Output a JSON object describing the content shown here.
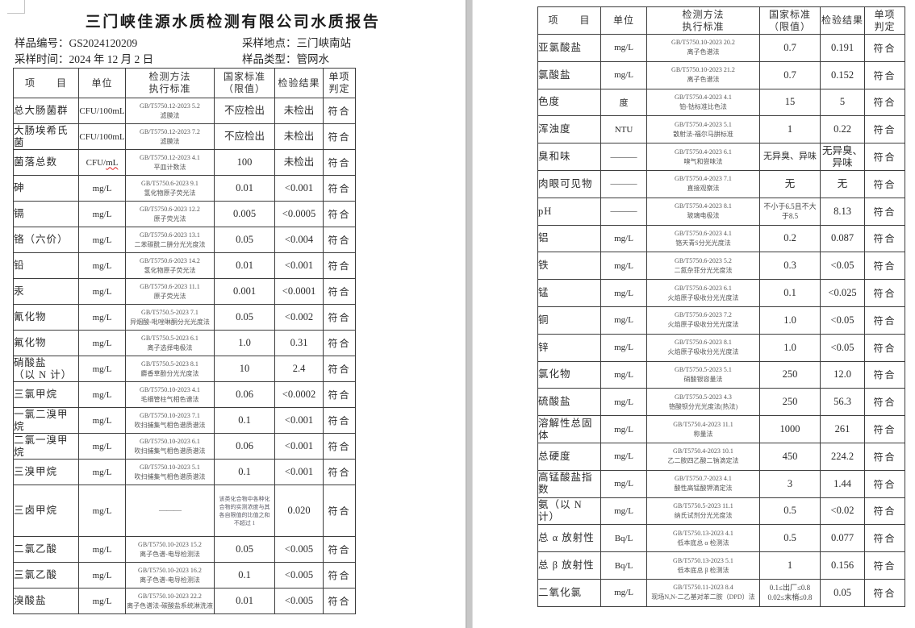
{
  "report": {
    "title": "三门峡佳源水质检测有限公司水质报告",
    "sample_no_label": "样品编号：",
    "sample_no": "GS2024120209",
    "sample_time_label": "采样时间：",
    "sample_time": "2024 年 12 月 2 日",
    "location_label": "采样地点：",
    "location": "三门峡南站",
    "sample_type_label": "样品类型：",
    "sample_type": "管网水"
  },
  "table_headers": {
    "item": "项　　目",
    "unit": "单位",
    "method": [
      "检测方法",
      "执行标准"
    ],
    "limit": [
      "国家标准",
      "（限值）"
    ],
    "result": "检验结果",
    "verdict": [
      "单项",
      "判定"
    ]
  },
  "page1_rows": [
    {
      "item": "总大肠菌群",
      "unit": "CFU/100mL",
      "m1": "GB/T5750.12-2023 5.2",
      "m2": "滤膜法",
      "limit": "不应检出",
      "result": "未检出",
      "verdict": "符合"
    },
    {
      "item": "大肠埃希氏菌",
      "unit": "CFU/100mL",
      "m1": "GB/T5750.12-2023 7.2",
      "m2": "滤膜法",
      "limit": "不应检出",
      "result": "未检出",
      "verdict": "符合"
    },
    {
      "item": "菌落总数",
      "unit": "CFU/mL",
      "wavy": true,
      "m1": "GB/T5750.12-2023 4.1",
      "m2": "平皿计数法",
      "limit": "100",
      "result": "未检出",
      "verdict": "符合"
    },
    {
      "item": "砷",
      "unit": "mg/L",
      "m1": "GB/T5750.6-2023 9.1",
      "m2": "氢化物原子荧光法",
      "limit": "0.01",
      "result": "<0.001",
      "verdict": "符合"
    },
    {
      "item": "镉",
      "unit": "mg/L",
      "m1": "GB/T5750.6-2023 12.2",
      "m2": "原子荧光法",
      "limit": "0.005",
      "result": "<0.0005",
      "verdict": "符合"
    },
    {
      "item": "铬（六价）",
      "unit": "mg/L",
      "m1": "GB/T5750.6-2023 13.1",
      "m2": "二苯碳酰二肼分光光度法",
      "limit": "0.05",
      "result": "<0.004",
      "verdict": "符合"
    },
    {
      "item": "铅",
      "unit": "mg/L",
      "m1": "GB/T5750.6-2023 14.2",
      "m2": "氢化物原子荧光法",
      "limit": "0.01",
      "result": "<0.001",
      "verdict": "符合"
    },
    {
      "item": "汞",
      "unit": "mg/L",
      "m1": "GB/T5750.6-2023 11.1",
      "m2": "原子荧光法",
      "limit": "0.001",
      "result": "<0.0001",
      "verdict": "符合"
    },
    {
      "item": "氰化物",
      "unit": "mg/L",
      "m1": "GB/T5750.5-2023 7.1",
      "m2": "异烟酸-吡唑啉酮分光光度法",
      "limit": "0.05",
      "result": "<0.002",
      "verdict": "符合"
    },
    {
      "item": "氟化物",
      "unit": "mg/L",
      "m1": "GB/T5750.5-2023 6.1",
      "m2": "离子选择电极法",
      "limit": "1.0",
      "result": "0.31",
      "verdict": "符合"
    },
    {
      "item": "硝酸盐",
      "item2": "（以 N 计）",
      "unit": "mg/L",
      "m1": "GB/T5750.5-2023 8.1",
      "m2": "麝香草酚分光光度法",
      "limit": "10",
      "result": "2.4",
      "verdict": "符合"
    },
    {
      "item": "三氯甲烷",
      "unit": "mg/L",
      "m1": "GB/T5750.10-2023 4.1",
      "m2": "毛细管柱气相色谱法",
      "limit": "0.06",
      "result": "<0.0002",
      "verdict": "符合"
    },
    {
      "item": "一氯二溴甲烷",
      "unit": "mg/L",
      "m1": "GB/T5750.10-2023 7.1",
      "m2": "吹扫捕集气相色谱质谱法",
      "limit": "0.1",
      "result": "<0.001",
      "verdict": "符合"
    },
    {
      "item": "二氯一溴甲烷",
      "unit": "mg/L",
      "m1": "GB/T5750.10-2023 6.1",
      "m2": "吹扫捕集气相色谱质谱法",
      "limit": "0.06",
      "result": "<0.001",
      "verdict": "符合"
    },
    {
      "item": "三溴甲烷",
      "unit": "mg/L",
      "m1": "GB/T5750.10-2023 5.1",
      "m2": "吹扫捕集气相色谱质谱法",
      "limit": "0.1",
      "result": "<0.001",
      "verdict": "符合"
    },
    {
      "item": "三卤甲烷",
      "unit": "mg/L",
      "m1": "———",
      "limit": "该类化合物中各种化合物的实测浓度与其各自限值的比值之和不超过 1",
      "ls": "xs",
      "result": "0.020",
      "verdict": "符合",
      "h": 64
    },
    {
      "item": "二氯乙酸",
      "unit": "mg/L",
      "m1": "GB/T5750.10-2023 15.2",
      "m2": "离子色谱-电导检测法",
      "limit": "0.05",
      "result": "<0.005",
      "verdict": "符合"
    },
    {
      "item": "三氯乙酸",
      "unit": "mg/L",
      "m1": "GB/T5750.10-2023 16.2",
      "m2": "离子色谱-电导检测法",
      "limit": "0.1",
      "result": "<0.005",
      "verdict": "符合"
    },
    {
      "item": "溴酸盐",
      "unit": "mg/L",
      "m1": "GB/T5750.10-2023 22.2",
      "m2": "离子色谱法-碳酸盐系统淋洗液",
      "limit": "0.01",
      "result": "<0.005",
      "verdict": "符合"
    }
  ],
  "page2_rows": [
    {
      "item": "亚氯酸盐",
      "unit": "mg/L",
      "m1": "GB/T5750.10-2023 20.2",
      "m2": "离子色谱法",
      "limit": "0.7",
      "result": "0.191",
      "verdict": "符合"
    },
    {
      "item": "氯酸盐",
      "unit": "mg/L",
      "m1": "GB/T5750.10-2023 21.2",
      "m2": "离子色谱法",
      "limit": "0.7",
      "result": "0.152",
      "verdict": "符合"
    },
    {
      "item": "色度",
      "unit": "度",
      "m1": "GB/T5750.4-2023 4.1",
      "m2": "铂-钴标准比色法",
      "limit": "15",
      "result": "5",
      "verdict": "符合"
    },
    {
      "item": "浑浊度",
      "unit": "NTU",
      "m1": "GB/T5750.4-2023 5.1",
      "m2": "散射法-福尔马肼标准",
      "limit": "1",
      "result": "0.22",
      "verdict": "符合"
    },
    {
      "item": "臭和味",
      "unit": "———",
      "m1": "GB/T5750.4-2023 6.1",
      "m2": "嗅气和尝味法",
      "limit": "无异臭、异味",
      "limit_fit": true,
      "result": [
        "无异臭、",
        "异味"
      ],
      "verdict": "符合"
    },
    {
      "item": "肉眼可见物",
      "unit": "———",
      "m1": "GB/T5750.4-2023 7.1",
      "m2": "直接观察法",
      "limit": "无",
      "result": "无",
      "verdict": "符合"
    },
    {
      "item": "pH",
      "unit": "———",
      "m1": "GB/T5750.4-2023 8.1",
      "m2": "玻璃电极法",
      "limit": "不小于6.5且不大于8.5",
      "ls": "s",
      "result": "8.13",
      "verdict": "符合"
    },
    {
      "item": "铝",
      "unit": "mg/L",
      "m1": "GB/T5750.6-2023 4.1",
      "m2": "铬天青S分光光度法",
      "limit": "0.2",
      "result": "0.087",
      "verdict": "符合"
    },
    {
      "item": "铁",
      "unit": "mg/L",
      "m1": "GB/T5750.6-2023 5.2",
      "m2": "二氮杂菲分光光度法",
      "limit": "0.3",
      "result": "<0.05",
      "verdict": "符合"
    },
    {
      "item": "锰",
      "unit": "mg/L",
      "m1": "GB/T5750.6-2023 6.1",
      "m2": "火焰原子吸收分光光度法",
      "limit": "0.1",
      "result": "<0.025",
      "verdict": "符合"
    },
    {
      "item": "铜",
      "unit": "mg/L",
      "m1": "GB/T5750.6-2023 7.2",
      "m2": "火焰原子吸收分光光度法",
      "limit": "1.0",
      "result": "<0.05",
      "verdict": "符合"
    },
    {
      "item": "锌",
      "unit": "mg/L",
      "m1": "GB/T5750.6-2023 8.1",
      "m2": "火焰原子吸收分光光度法",
      "limit": "1.0",
      "result": "<0.05",
      "verdict": "符合"
    },
    {
      "item": "氯化物",
      "unit": "mg/L",
      "m1": "GB/T5750.5-2023 5.1",
      "m2": "硝酸银容量法",
      "limit": "250",
      "result": "12.0",
      "verdict": "符合"
    },
    {
      "item": "硫酸盐",
      "unit": "mg/L",
      "m1": "GB/T5750.5-2023 4.3",
      "m2": "铬酸钡分光光度法(热法)",
      "limit": "250",
      "result": "56.3",
      "verdict": "符合"
    },
    {
      "item": "溶解性总固体",
      "unit": "mg/L",
      "m1": "GB/T5750.4-2023 11.1",
      "m2": "称量法",
      "limit": "1000",
      "result": "261",
      "verdict": "符合"
    },
    {
      "item": "总硬度",
      "unit": "mg/L",
      "m1": "GB/T5750.4-2023 10.1",
      "m2": "乙二胺四乙酸二钠滴定法",
      "limit": "450",
      "result": "224.2",
      "verdict": "符合"
    },
    {
      "item": "高锰酸盐指数",
      "unit": "mg/L",
      "m1": "GB/T5750.7-2023 4.1",
      "m2": "酸性高锰酸钾滴定法",
      "limit": "3",
      "result": "1.44",
      "verdict": "符合"
    },
    {
      "item": "氨（以 N 计）",
      "unit": "mg/L",
      "m1": "GB/T5750.5-2023 11.1",
      "m2": "纳氏试剂分光光度法",
      "limit": "0.5",
      "result": "<0.02",
      "verdict": "符合"
    },
    {
      "item": "总 α 放射性",
      "unit": "Bq/L",
      "m1": "GB/T5750.13-2023 4.1",
      "m2": "低本底总 α 检测法",
      "limit": "0.5",
      "result": "0.077",
      "verdict": "符合"
    },
    {
      "item": "总 β 放射性",
      "unit": "Bq/L",
      "m1": "GB/T5750.13-2023 5.1",
      "m2": "低本底总 β 检测法",
      "limit": "1",
      "result": "0.156",
      "verdict": "符合"
    },
    {
      "item": "二氧化氯",
      "unit": "mg/L",
      "m1": "GB/T5750.11-2023 8.4",
      "m2": "现场N,N-二乙基对苯二胺（DPD）法",
      "limit": [
        "0.1≤出厂≤0.8",
        "0.02≤末梢≤0.8"
      ],
      "ls": "s",
      "result": "0.05",
      "verdict": "符合"
    }
  ]
}
